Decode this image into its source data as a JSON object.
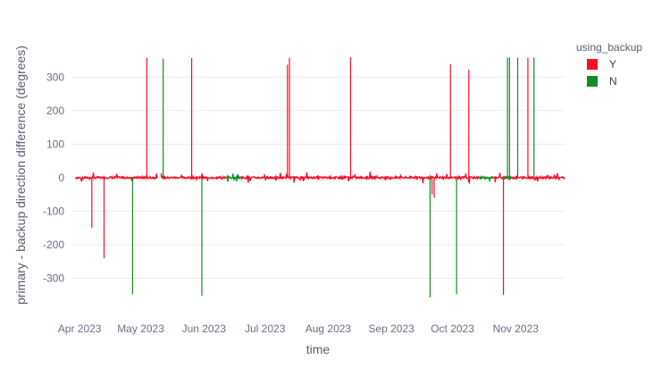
{
  "chart_data": {
    "type": "line",
    "title": "",
    "xlabel": "time",
    "ylabel": "primary - backup direction difference (degrees)",
    "x_range": [
      "2023-03-28",
      "2023-11-25"
    ],
    "ylim": [
      -360,
      370
    ],
    "yticks": [
      -300,
      -200,
      -100,
      0,
      100,
      200,
      300
    ],
    "xticks": [
      {
        "date": "2023-04-01",
        "label": "Apr 2023"
      },
      {
        "date": "2023-05-01",
        "label": "May 2023"
      },
      {
        "date": "2023-06-01",
        "label": "Jun 2023"
      },
      {
        "date": "2023-07-01",
        "label": "Jul 2023"
      },
      {
        "date": "2023-08-01",
        "label": "Aug 2023"
      },
      {
        "date": "2023-09-01",
        "label": "Sep 2023"
      },
      {
        "date": "2023-10-01",
        "label": "Oct 2023"
      },
      {
        "date": "2023-11-01",
        "label": "Nov 2023"
      }
    ],
    "grid": true,
    "legend": {
      "title": "using_backup",
      "position": "top-right"
    },
    "baseline_gaps": [
      [
        "2023-05-09",
        "2023-05-11"
      ]
    ],
    "series": [
      {
        "name": "Y",
        "color": "#ff0c25",
        "baseline_segments": [
          [
            "2023-03-30",
            "2023-05-09"
          ],
          [
            "2023-05-11",
            "2023-06-12"
          ],
          [
            "2023-06-19",
            "2023-10-14"
          ],
          [
            "2023-10-21",
            "2023-11-25"
          ]
        ],
        "spikes": [
          {
            "x": "2023-04-07",
            "y": -150
          },
          {
            "x": "2023-04-13",
            "y": -240
          },
          {
            "x": "2023-05-04",
            "y": 358
          },
          {
            "x": "2023-05-26",
            "y": 357
          },
          {
            "x": "2023-07-12",
            "y": 337
          },
          {
            "x": "2023-07-13",
            "y": 357
          },
          {
            "x": "2023-08-12",
            "y": 359
          },
          {
            "x": "2023-09-21",
            "y": -50
          },
          {
            "x": "2023-09-22",
            "y": -60
          },
          {
            "x": "2023-09-30",
            "y": 338
          },
          {
            "x": "2023-10-09",
            "y": 322
          },
          {
            "x": "2023-10-26",
            "y": -350
          },
          {
            "x": "2023-11-07",
            "y": 358
          }
        ]
      },
      {
        "name": "N",
        "color": "#168a24",
        "baseline_segments": [
          [
            "2023-06-12",
            "2023-06-19"
          ],
          [
            "2023-10-14",
            "2023-10-21"
          ],
          [
            "2023-10-26",
            "2023-10-30"
          ]
        ],
        "spikes": [
          {
            "x": "2023-04-27",
            "y": -348
          },
          {
            "x": "2023-05-12",
            "y": 355
          },
          {
            "x": "2023-05-31",
            "y": -352
          },
          {
            "x": "2023-09-20",
            "y": -357
          },
          {
            "x": "2023-10-03",
            "y": -348
          },
          {
            "x": "2023-10-28",
            "y": 358
          },
          {
            "x": "2023-10-29",
            "y": 358
          },
          {
            "x": "2023-11-02",
            "y": 358
          },
          {
            "x": "2023-11-10",
            "y": 358
          }
        ]
      }
    ]
  }
}
